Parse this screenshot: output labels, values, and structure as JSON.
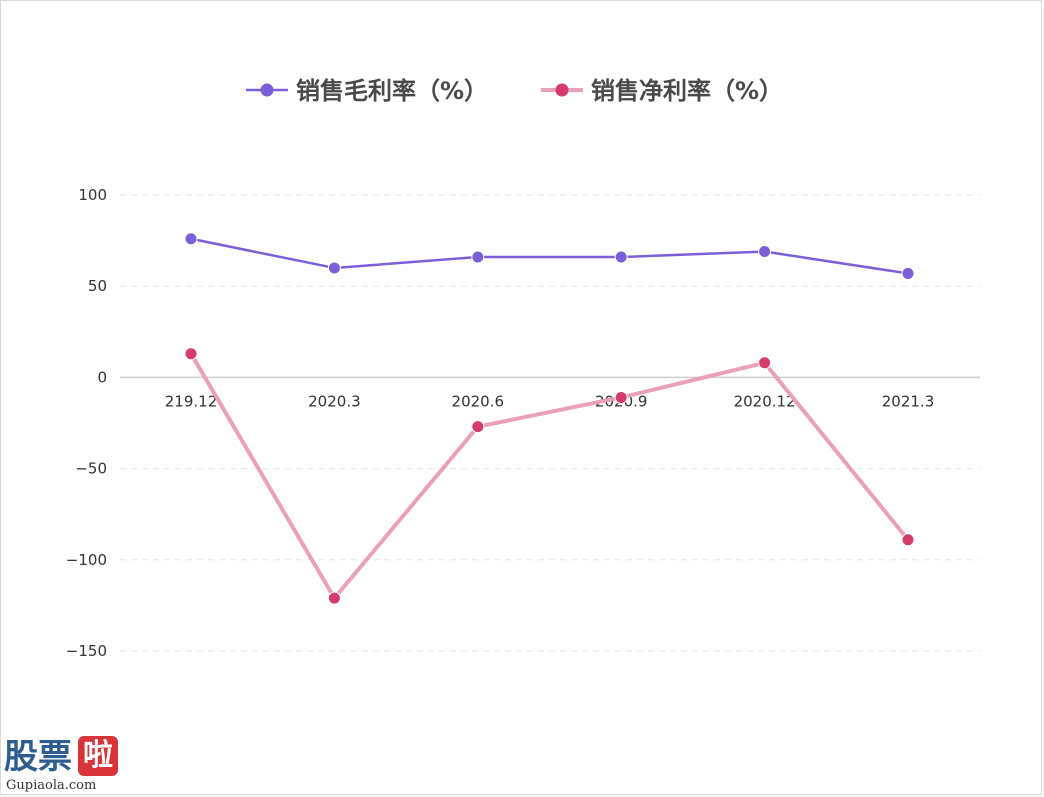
{
  "chart_data": {
    "type": "line",
    "categories": [
      "219.12",
      "2020.3",
      "2020.6",
      "2020.9",
      "2020.12",
      "2021.3"
    ],
    "series": [
      {
        "name": "销售毛利率（%）",
        "values": [
          76,
          60,
          66,
          66,
          69,
          57
        ],
        "line_color": "#7b5fd8",
        "marker_color": "#7b5fd8"
      },
      {
        "name": "销售净利率（%）",
        "values": [
          13,
          -121,
          -27,
          -11,
          8,
          -89
        ],
        "line_color": "#e9a0b8",
        "marker_color": "#d43a6a"
      }
    ],
    "y_ticks": [
      100,
      50,
      0,
      -50,
      -100,
      -150
    ],
    "ylim": [
      -150,
      100
    ],
    "grid": true,
    "legend_position": "top-center"
  },
  "watermark": {
    "part1": "股票",
    "part2": "啦",
    "url": "Gupiaola.com"
  }
}
